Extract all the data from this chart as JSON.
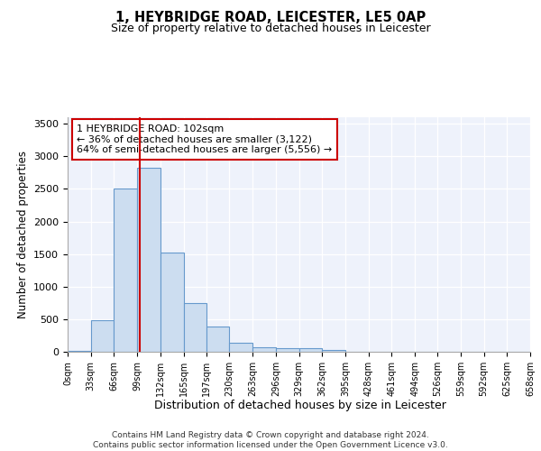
{
  "title1": "1, HEYBRIDGE ROAD, LEICESTER, LE5 0AP",
  "title2": "Size of property relative to detached houses in Leicester",
  "xlabel": "Distribution of detached houses by size in Leicester",
  "ylabel": "Number of detached properties",
  "bar_counts": [
    20,
    480,
    2510,
    2820,
    1520,
    750,
    385,
    140,
    75,
    55,
    55,
    25,
    0,
    0,
    0,
    0,
    0,
    0,
    0,
    0
  ],
  "bin_edges": [
    0,
    33,
    66,
    99,
    132,
    165,
    197,
    230,
    263,
    296,
    329,
    362,
    395,
    428,
    461,
    494,
    526,
    559,
    592,
    625,
    658
  ],
  "bar_color": "#ccddf0",
  "bar_edge_color": "#6699cc",
  "reference_line_x": 102,
  "ylim": [
    0,
    3600
  ],
  "yticks": [
    0,
    500,
    1000,
    1500,
    2000,
    2500,
    3000,
    3500
  ],
  "annotation_text": "1 HEYBRIDGE ROAD: 102sqm\n← 36% of detached houses are smaller (3,122)\n64% of semi-detached houses are larger (5,556) →",
  "annotation_box_color": "#ffffff",
  "annotation_box_edge_color": "#cc0000",
  "ref_line_color": "#cc0000",
  "background_color": "#eef2fb",
  "grid_color": "#ffffff",
  "footer_text": "Contains HM Land Registry data © Crown copyright and database right 2024.\nContains public sector information licensed under the Open Government Licence v3.0.",
  "tick_labels": [
    "0sqm",
    "33sqm",
    "66sqm",
    "99sqm",
    "132sqm",
    "165sqm",
    "197sqm",
    "230sqm",
    "263sqm",
    "296sqm",
    "329sqm",
    "362sqm",
    "395sqm",
    "428sqm",
    "461sqm",
    "494sqm",
    "526sqm",
    "559sqm",
    "592sqm",
    "625sqm",
    "658sqm"
  ]
}
